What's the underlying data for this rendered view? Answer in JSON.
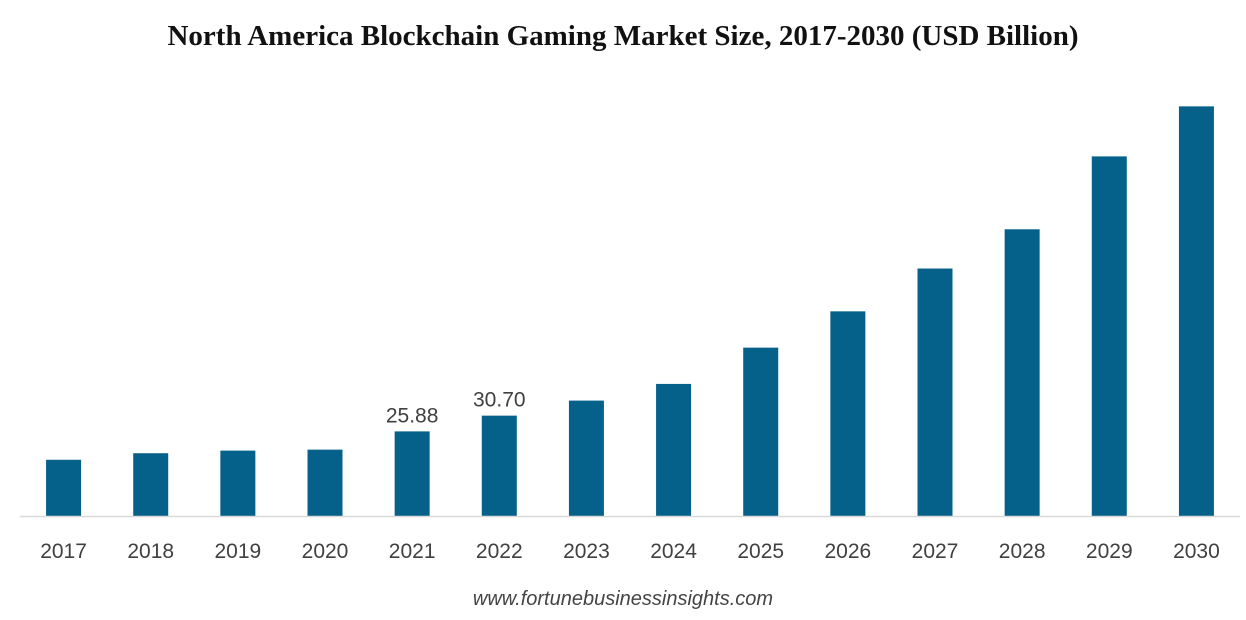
{
  "chart_data": {
    "type": "bar",
    "title": "North America Blockchain Gaming Market Size, 2017-2030 (USD Billion)",
    "xlabel": "",
    "ylabel": "",
    "categories": [
      "2017",
      "2018",
      "2019",
      "2020",
      "2021",
      "2022",
      "2023",
      "2024",
      "2025",
      "2026",
      "2027",
      "2028",
      "2029",
      "2030"
    ],
    "values": [
      17.2,
      19.2,
      20.0,
      20.3,
      25.88,
      30.7,
      35.3,
      40.4,
      51.5,
      62.6,
      75.7,
      87.7,
      110.0,
      125.3
    ],
    "data_labels": {
      "2021": "25.88",
      "2022": "30.70"
    },
    "ylim": [
      0,
      130
    ],
    "grid": false,
    "legend": "none",
    "bar_color": "#05618a",
    "axis_color": "#d9d9d9",
    "label_color": "#404040"
  },
  "footer": {
    "source": "www.fortunebusinessinsights.com"
  }
}
